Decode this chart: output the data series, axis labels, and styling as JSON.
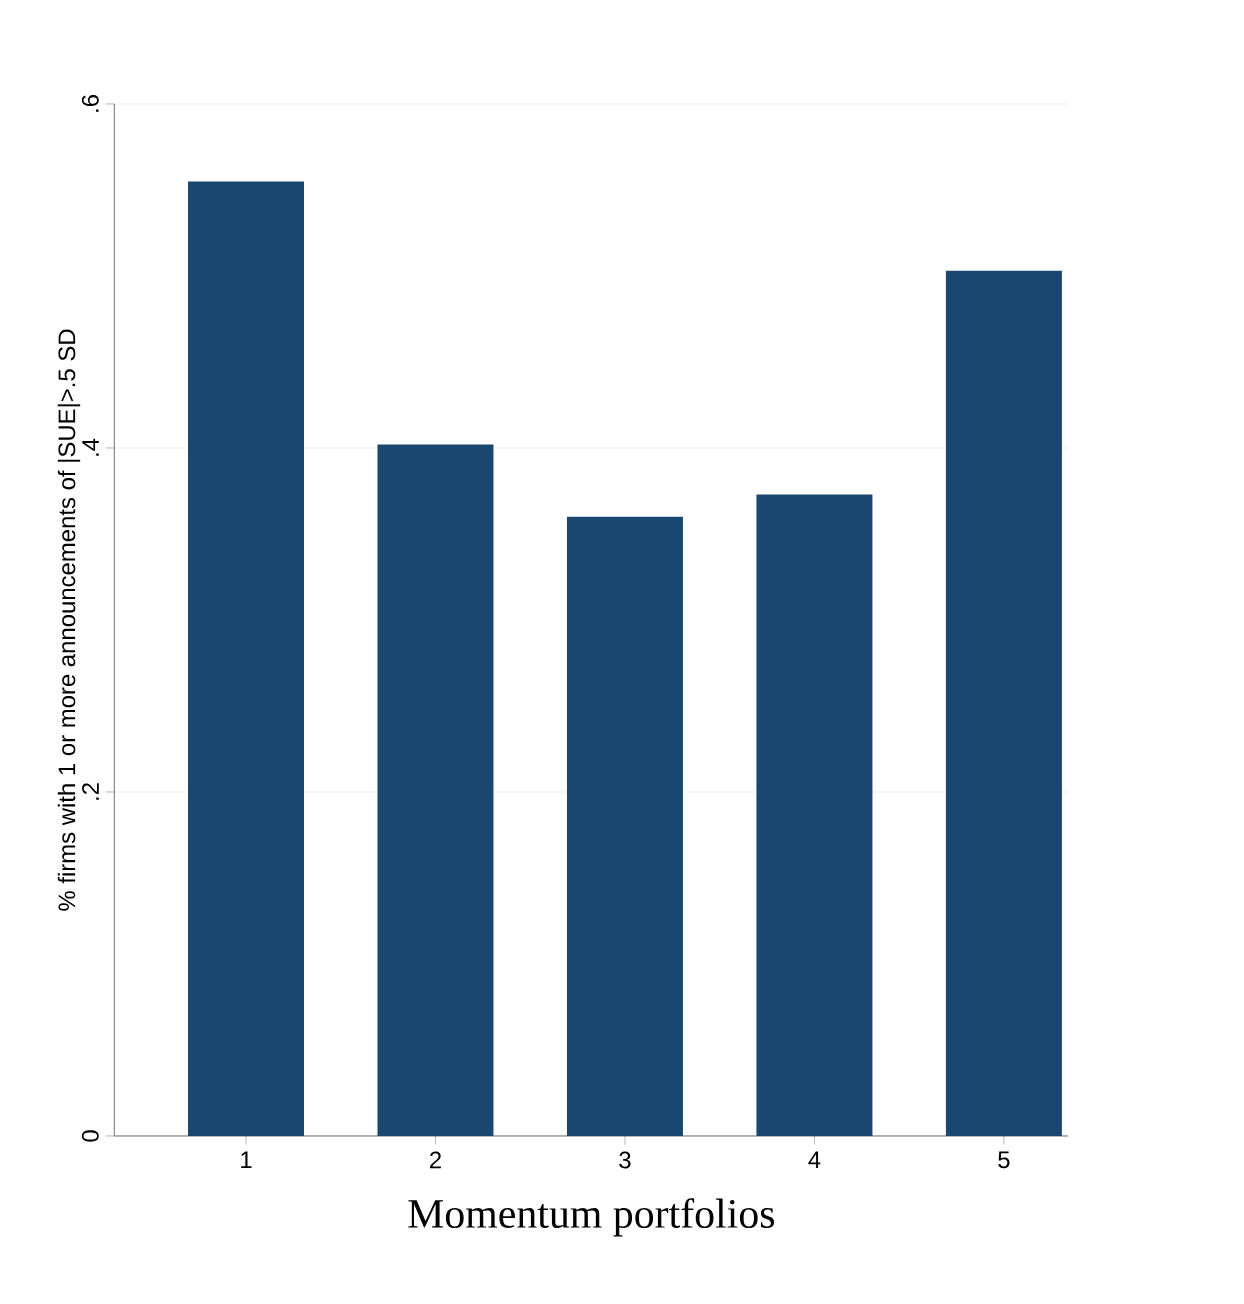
{
  "chart_data": {
    "type": "bar",
    "xlabel": "Momentum portfolios",
    "ylabel": "% firms with 1 or more announcements of |SUE|>.5 SD",
    "categories": [
      "1",
      "2",
      "3",
      "4",
      "5"
    ],
    "values": [
      0.555,
      0.402,
      0.36,
      0.373,
      0.503
    ],
    "color": "#1a476f",
    "ylim": [
      0,
      0.6
    ],
    "yticks": [
      0,
      {
        "value": 0.2,
        "label": ".2"
      },
      {
        "value": 0.4,
        "label": ".4"
      },
      {
        "value": 0.6,
        "label": ".6"
      }
    ],
    "grid": "y"
  }
}
